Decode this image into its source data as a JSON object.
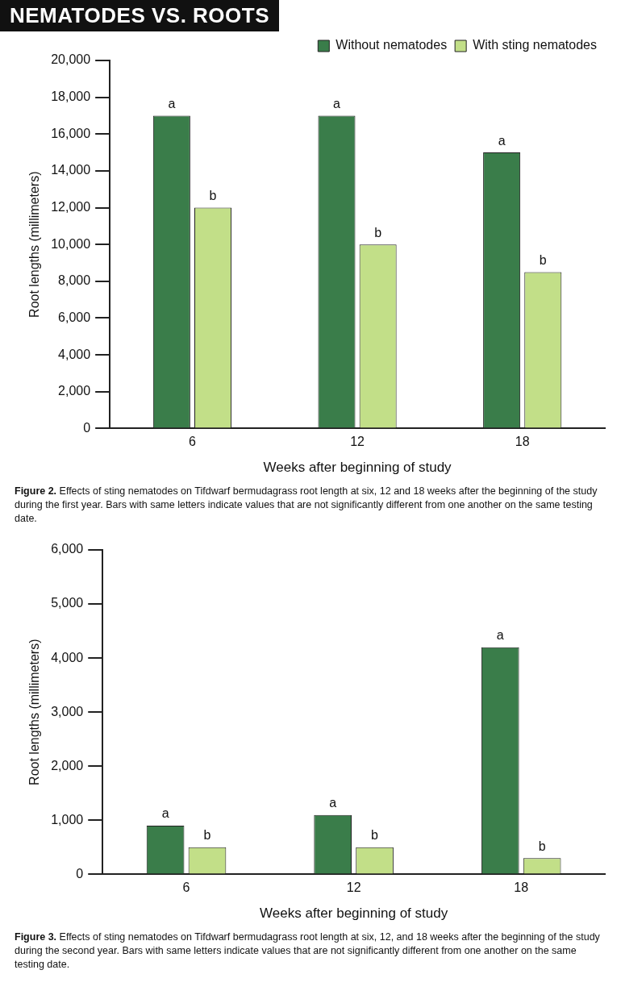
{
  "chart_data": [
    {
      "type": "bar",
      "title": "NEMATODES VS. ROOTS",
      "categories": [
        "6",
        "12",
        "18"
      ],
      "xlabel": "Weeks after beginning of study",
      "ylabel": "Root lengths (millimeters)",
      "ylim": [
        0,
        20000
      ],
      "yticks": [
        {
          "value": 0,
          "label": "0"
        },
        {
          "value": 2000,
          "label": "2,000"
        },
        {
          "value": 4000,
          "label": "4,000"
        },
        {
          "value": 6000,
          "label": "6,000"
        },
        {
          "value": 8000,
          "label": "8,000"
        },
        {
          "value": 10000,
          "label": "10,000"
        },
        {
          "value": 12000,
          "label": "12,000"
        },
        {
          "value": 14000,
          "label": "14,000"
        },
        {
          "value": 16000,
          "label": "16,000"
        },
        {
          "value": 18000,
          "label": "18,000"
        },
        {
          "value": 20000,
          "label": "20,000"
        }
      ],
      "grid": false,
      "legend": "top right",
      "series": [
        {
          "name": "Without nematodes",
          "color": "#3a7d4a",
          "values": [
            17000,
            17000,
            15000
          ],
          "value_labels": [
            "a",
            "a",
            "a"
          ]
        },
        {
          "name": "With sting nematodes",
          "color": "#c2df88",
          "values": [
            12000,
            10000,
            8500
          ],
          "value_labels": [
            "b",
            "b",
            "b"
          ]
        }
      ],
      "annotations": [
        "Figure 2. Effects of sting nematodes on Tifdwarf bermudagrass root length at six, 12 and 18 weeks after the beginning of the study during the first year. Bars with same letters indicate values that are not significantly different from one another on the same testing date."
      ]
    },
    {
      "type": "bar",
      "categories": [
        "6",
        "12",
        "18"
      ],
      "xlabel": "Weeks after beginning of study",
      "ylabel": "Root lengths (millimeters)",
      "ylim": [
        0,
        6000
      ],
      "yticks": [
        {
          "value": 0,
          "label": "0"
        },
        {
          "value": 1000,
          "label": "1,000"
        },
        {
          "value": 2000,
          "label": "2,000"
        },
        {
          "value": 3000,
          "label": "3,000"
        },
        {
          "value": 4000,
          "label": "4,000"
        },
        {
          "value": 5000,
          "label": "5,000"
        },
        {
          "value": 6000,
          "label": "6,000"
        }
      ],
      "grid": false,
      "series": [
        {
          "color": "#3a7d4a",
          "values": [
            900,
            1100,
            4200
          ],
          "value_labels": [
            "a",
            "a",
            "a"
          ]
        },
        {
          "color": "#c2df88",
          "values": [
            500,
            500,
            300
          ],
          "value_labels": [
            "b",
            "b",
            "b"
          ]
        }
      ],
      "annotations": [
        "Figure 3. Effects of sting nematodes on Tifdwarf bermudagrass root length at six, 12, and 18 weeks after the beginning of the study during the second year. Bars with same letters indicate values that are not significantly different from one another on the same testing date."
      ]
    }
  ]
}
